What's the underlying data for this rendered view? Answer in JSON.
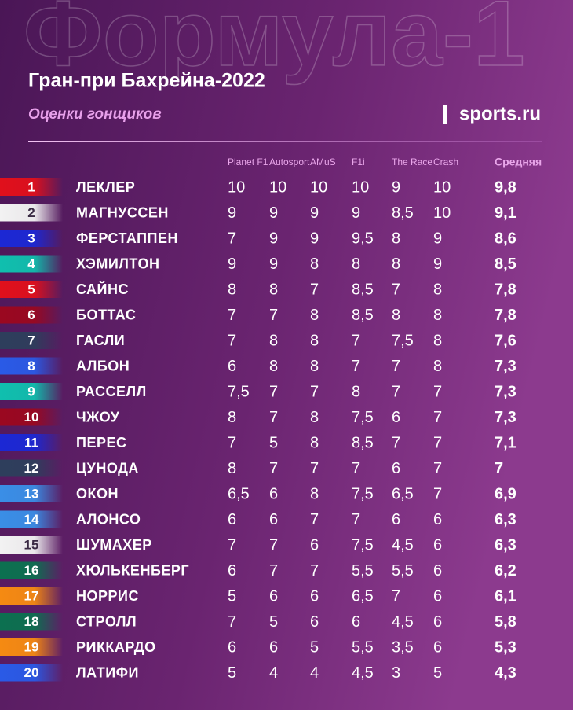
{
  "header": {
    "watermark": "Формула-1",
    "title": "Гран-при Бахрейна-2022",
    "subtitle": "Оценки гонщиков",
    "logo": "sports.ru"
  },
  "table": {
    "columns": [
      "Planet F1",
      "Autosport",
      "AMuS",
      "F1i",
      "The Race",
      "Crash",
      "Средняя"
    ],
    "rows": [
      {
        "rank": "1",
        "name": "ЛЕКЛЕР",
        "color": "#e0101c",
        "scores": [
          "10",
          "10",
          "10",
          "10",
          "9",
          "10",
          "9,8"
        ]
      },
      {
        "rank": "2",
        "name": "МАГНУССЕН",
        "color": "#f2f2f2",
        "scores": [
          "9",
          "9",
          "9",
          "9",
          "8,5",
          "10",
          "9,1"
        ]
      },
      {
        "rank": "3",
        "name": "ФЕРСТАППЕН",
        "color": "#1c28d4",
        "scores": [
          "7",
          "9",
          "9",
          "9,5",
          "8",
          "9",
          "8,6"
        ]
      },
      {
        "rank": "4",
        "name": "ХЭМИЛТОН",
        "color": "#10bfae",
        "scores": [
          "9",
          "9",
          "8",
          "8",
          "8",
          "9",
          "8,5"
        ]
      },
      {
        "rank": "5",
        "name": "САЙНС",
        "color": "#e0101c",
        "scores": [
          "8",
          "8",
          "7",
          "8,5",
          "7",
          "8",
          "7,8"
        ]
      },
      {
        "rank": "6",
        "name": "БОТТАС",
        "color": "#9a0820",
        "scores": [
          "7",
          "7",
          "8",
          "8,5",
          "8",
          "8",
          "7,8"
        ]
      },
      {
        "rank": "7",
        "name": "ГАСЛИ",
        "color": "#2e3e5c",
        "scores": [
          "7",
          "8",
          "8",
          "7",
          "7,5",
          "8",
          "7,6"
        ]
      },
      {
        "rank": "8",
        "name": "АЛБОН",
        "color": "#2a5ae6",
        "scores": [
          "6",
          "8",
          "8",
          "7",
          "7",
          "8",
          "7,3"
        ]
      },
      {
        "rank": "9",
        "name": "РАССЕЛЛ",
        "color": "#10bfae",
        "scores": [
          "7,5",
          "7",
          "7",
          "8",
          "7",
          "7",
          "7,3"
        ]
      },
      {
        "rank": "10",
        "name": "ЧЖОУ",
        "color": "#9a0820",
        "scores": [
          "8",
          "7",
          "8",
          "7,5",
          "6",
          "7",
          "7,3"
        ]
      },
      {
        "rank": "11",
        "name": "ПЕРЕС",
        "color": "#1c28d4",
        "scores": [
          "7",
          "5",
          "8",
          "8,5",
          "7",
          "7",
          "7,1"
        ]
      },
      {
        "rank": "12",
        "name": "ЦУНОДА",
        "color": "#2e3e5c",
        "scores": [
          "8",
          "7",
          "7",
          "7",
          "6",
          "7",
          "7"
        ]
      },
      {
        "rank": "13",
        "name": "ОКОН",
        "color": "#3a8ee6",
        "scores": [
          "6,5",
          "6",
          "8",
          "7,5",
          "6,5",
          "7",
          "6,9"
        ]
      },
      {
        "rank": "14",
        "name": "АЛОНСО",
        "color": "#3a8ee6",
        "scores": [
          "6",
          "6",
          "7",
          "7",
          "6",
          "6",
          "6,3"
        ]
      },
      {
        "rank": "15",
        "name": "ШУМАХЕР",
        "color": "#f2f2f2",
        "scores": [
          "7",
          "7",
          "6",
          "7,5",
          "4,5",
          "6",
          "6,3"
        ]
      },
      {
        "rank": "16",
        "name": "ХЮЛЬКЕНБЕРГ",
        "color": "#0c7050",
        "scores": [
          "6",
          "7",
          "7",
          "5,5",
          "5,5",
          "6",
          "6,2"
        ]
      },
      {
        "rank": "17",
        "name": "НОРРИС",
        "color": "#f58a12",
        "scores": [
          "5",
          "6",
          "6",
          "6,5",
          "7",
          "6",
          "6,1"
        ]
      },
      {
        "rank": "18",
        "name": "СТРОЛЛ",
        "color": "#0c7050",
        "scores": [
          "7",
          "5",
          "6",
          "6",
          "4,5",
          "6",
          "5,8"
        ]
      },
      {
        "rank": "19",
        "name": "РИККАРДО",
        "color": "#f58a12",
        "scores": [
          "6",
          "6",
          "5",
          "5,5",
          "3,5",
          "6",
          "5,3"
        ]
      },
      {
        "rank": "20",
        "name": "ЛАТИФИ",
        "color": "#2a5ae6",
        "scores": [
          "5",
          "4",
          "4",
          "4,5",
          "3",
          "5",
          "4,3"
        ]
      }
    ]
  }
}
